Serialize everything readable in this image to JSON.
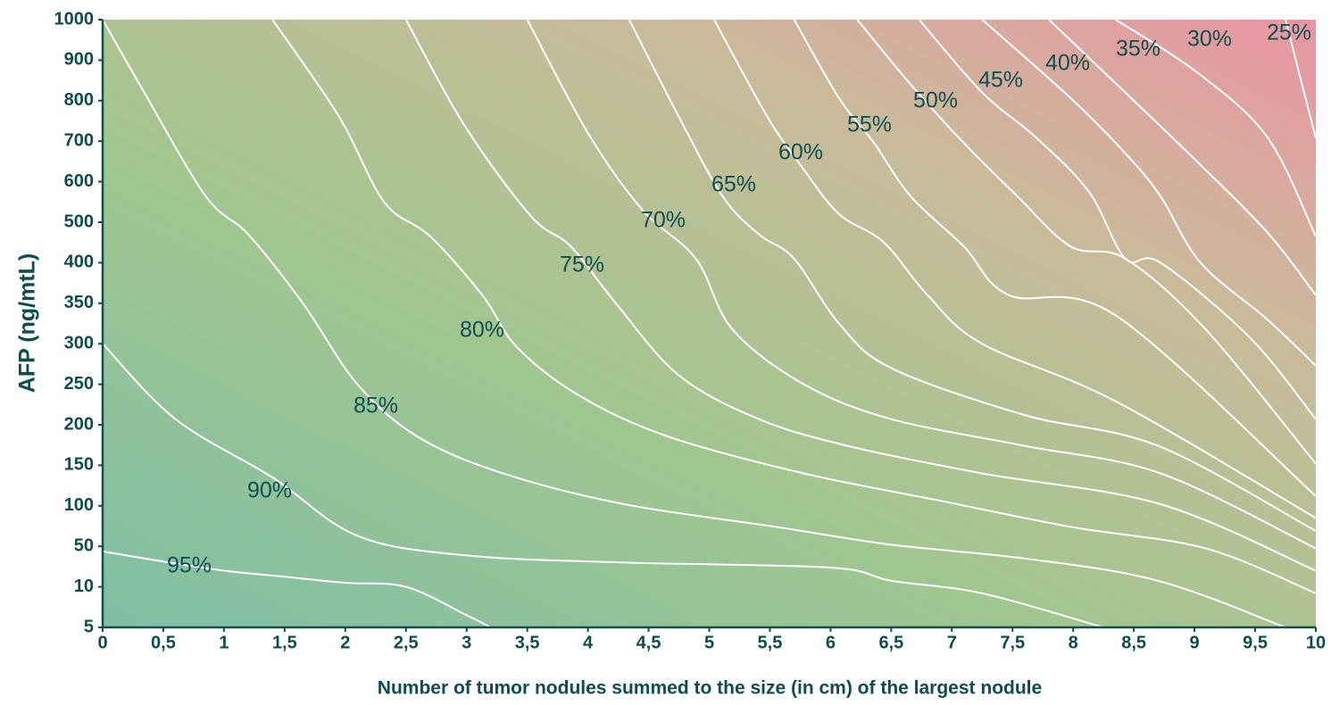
{
  "chart_data": {
    "type": "contour",
    "x_label": "Number of tumor nodules summed to the size (in cm) of the largest nodule",
    "y_label": "AFP (ng/mtL)",
    "y_scale": "ordinal",
    "xlim": [
      0,
      10
    ],
    "xticks": [
      0,
      {
        "value": 0.5,
        "label": "0,5"
      },
      1,
      {
        "value": 1.5,
        "label": "1,5"
      },
      2,
      {
        "value": 2.5,
        "label": "2,5"
      },
      3,
      {
        "value": 3.5,
        "label": "3,5"
      },
      4,
      {
        "value": 4.5,
        "label": "4,5"
      },
      5,
      {
        "value": 5.5,
        "label": "5,5"
      },
      6,
      {
        "value": 6.5,
        "label": "6,5"
      },
      7,
      {
        "value": 7.5,
        "label": "7,5"
      },
      8,
      {
        "value": 8.5,
        "label": "8,5"
      },
      9,
      {
        "value": 9.5,
        "label": "9,5"
      },
      10
    ],
    "yticks": [
      5,
      10,
      50,
      100,
      150,
      200,
      250,
      300,
      350,
      400,
      500,
      600,
      700,
      800,
      900,
      1000
    ],
    "line_color": "#ffffff",
    "gradient": [
      "#7fbfa5",
      "#a2c68f",
      "#c9bb9a",
      "#ea95a3"
    ],
    "series": [
      {
        "name": "95%",
        "x": [
          0,
          0.5,
          1,
          1.5,
          2,
          2.5,
          3,
          3.2
        ],
        "y": [
          45,
          35,
          26,
          20,
          14,
          10,
          6.5,
          5
        ]
      },
      {
        "name": "90%",
        "x": [
          0,
          0.6,
          1.4,
          2.1,
          3.0,
          4.3,
          6.0,
          6.5,
          7.25,
          8.25
        ],
        "y": [
          300,
          207,
          135,
          63,
          41,
          34,
          29,
          16,
          9.2,
          5
        ]
      },
      {
        "name": "85%",
        "x": [
          0,
          0.33,
          0.85,
          1.2,
          1.65,
          2.1,
          2.6,
          3.3,
          4.3,
          5.55,
          6.5,
          7.6,
          8.7,
          9.75
        ],
        "y": [
          1000,
          827,
          564,
          470,
          350,
          250,
          185,
          140,
          102,
          74,
          52,
          38,
          16,
          5
        ]
      },
      {
        "name": "80%",
        "x": [
          1.4,
          1.95,
          2.32,
          2.7,
          3.13,
          3.42,
          3.94,
          4.67,
          5.78,
          6.88,
          7.98,
          9.09,
          10
        ],
        "y": [
          1000,
          760,
          550,
          465,
          360,
          295,
          235,
          185,
          140,
          107,
          74,
          48,
          9.2
        ]
      },
      {
        "name": "75%",
        "x": [
          2.5,
          2.98,
          3.53,
          3.86,
          4.23,
          4.75,
          5.41,
          6.14,
          7.25,
          8.72,
          10
        ],
        "y": [
          1000,
          740,
          515,
          440,
          350,
          261,
          207,
          174,
          140,
          102,
          26
        ]
      },
      {
        "name": "70%",
        "x": [
          3.5,
          4.0,
          4.45,
          4.89,
          5.19,
          5.78,
          6.5,
          7.6,
          8.72,
          10
        ],
        "y": [
          1000,
          720,
          530,
          410,
          318,
          250,
          207,
          174,
          140,
          48
        ]
      },
      {
        "name": "65%",
        "x": [
          4.34,
          4.75,
          5.11,
          5.41,
          5.7,
          6.07,
          6.5,
          7.6,
          8.7,
          10
        ],
        "y": [
          1000,
          760,
          564,
          470,
          410,
          325,
          270,
          212,
          174,
          69
        ]
      },
      {
        "name": "60%",
        "x": [
          5.04,
          5.48,
          5.78,
          6.07,
          6.44,
          6.8,
          7.25,
          8.35,
          10
        ],
        "y": [
          1000,
          760,
          630,
          520,
          450,
          360,
          300,
          229,
          85
        ]
      },
      {
        "name": "55%",
        "x": [
          5.7,
          6.07,
          6.36,
          6.66,
          7.1,
          7.47,
          8.35,
          10
        ],
        "y": [
          1000,
          806,
          695,
          564,
          440,
          360,
          335,
          112
        ]
      },
      {
        "name": "50%",
        "x": [
          6.22,
          6.66,
          7.1,
          7.54,
          7.98,
          8.43,
          9.09,
          10
        ],
        "y": [
          1000,
          840,
          695,
          564,
          440,
          410,
          318,
          152
        ]
      },
      {
        "name": "45%",
        "x": [
          6.73,
          7.25,
          7.69,
          8.13,
          8.43,
          8.72,
          9.46,
          10
        ],
        "y": [
          1000,
          820,
          710,
          575,
          410,
          400,
          307,
          207
        ]
      },
      {
        "name": "40%",
        "x": [
          7.25,
          7.98,
          8.43,
          8.72,
          9.05,
          9.6,
          10
        ],
        "y": [
          1000,
          806,
          670,
          564,
          400,
          330,
          273
        ]
      },
      {
        "name": "35%",
        "x": [
          7.8,
          8.43,
          9.02,
          9.6,
          10
        ],
        "y": [
          1000,
          820,
          650,
          475,
          360
        ]
      },
      {
        "name": "30%",
        "x": [
          8.35,
          9.02,
          9.6,
          10
        ],
        "y": [
          1000,
          870,
          710,
          465
        ]
      },
      {
        "name": "25%",
        "x": [
          9.75,
          10
        ],
        "y": [
          1000,
          707
        ]
      }
    ]
  }
}
